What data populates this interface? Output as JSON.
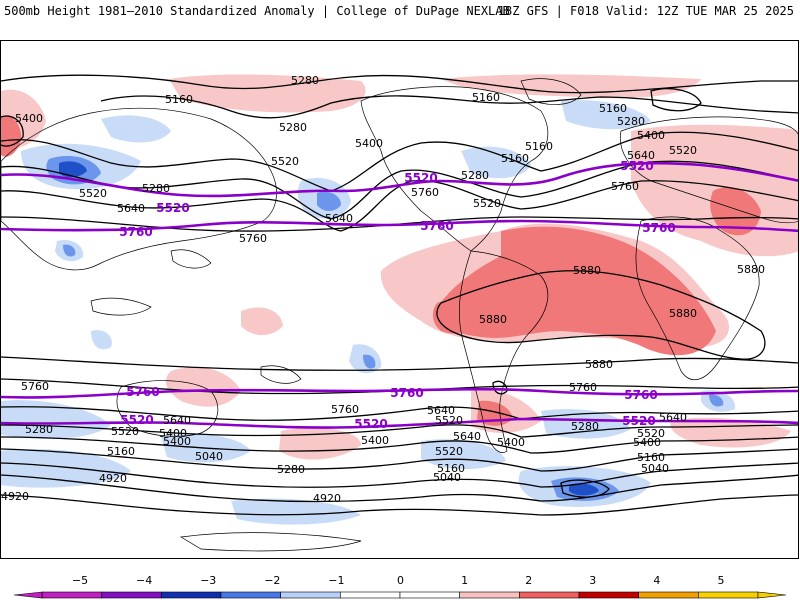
{
  "header": {
    "left": "500mb Height 1981–2010 Standardized Anomaly | College of DuPage NEXLAB",
    "right": "18Z GFS | F018 Valid: 12Z TUE MAR 25 2025"
  },
  "colors": {
    "contour": "#000000",
    "highlight_contour": "#8a00c8",
    "anomaly_pos_1": "#f8c8c8",
    "anomaly_pos_2": "#f07878",
    "anomaly_pos_3": "#c80000",
    "anomaly_neg_1": "#c8dcf8",
    "anomaly_neg_2": "#6c96ec",
    "anomaly_neg_3": "#2050c8"
  },
  "colorbar": {
    "ticks": [
      "−5",
      "−4",
      "−3",
      "−2",
      "−1",
      "0",
      "1",
      "2",
      "3",
      "4",
      "5"
    ],
    "colors": [
      "#c020c0",
      "#8010c0",
      "#1030b0",
      "#4878e8",
      "#b8d0f8",
      "#ffffff",
      "#ffffff",
      "#f8c0c0",
      "#f06060",
      "#c00000",
      "#f0a000",
      "#f8d000"
    ]
  },
  "contour_labels": [
    {
      "text": "5280"
    },
    {
      "text": "5160"
    },
    {
      "text": "5160"
    },
    {
      "text": "5160"
    },
    {
      "text": "5280"
    },
    {
      "text": "5400"
    },
    {
      "text": "5280"
    },
    {
      "text": "5400"
    },
    {
      "text": "5520"
    },
    {
      "text": "5400"
    },
    {
      "text": "5160"
    },
    {
      "text": "5520"
    },
    {
      "text": "5280"
    },
    {
      "text": "5640"
    },
    {
      "text": "5520"
    },
    {
      "text": "5640"
    },
    {
      "text": "5760"
    },
    {
      "text": "5280"
    },
    {
      "text": "5520"
    },
    {
      "text": "5760"
    },
    {
      "text": "5640"
    },
    {
      "text": "5760"
    },
    {
      "text": "5880"
    },
    {
      "text": "5880"
    },
    {
      "text": "5880"
    },
    {
      "text": "5880"
    },
    {
      "text": "5880"
    },
    {
      "text": "5760"
    },
    {
      "text": "5760"
    },
    {
      "text": "5640"
    },
    {
      "text": "5640"
    },
    {
      "text": "5520"
    },
    {
      "text": "5400"
    },
    {
      "text": "5520"
    },
    {
      "text": "5280"
    },
    {
      "text": "5400"
    },
    {
      "text": "5160"
    },
    {
      "text": "5040"
    },
    {
      "text": "5280"
    },
    {
      "text": "5160"
    },
    {
      "text": "5040"
    },
    {
      "text": "4920"
    },
    {
      "text": "4920"
    },
    {
      "text": "4920"
    },
    {
      "text": "5760"
    },
    {
      "text": "5640"
    },
    {
      "text": "5520"
    },
    {
      "text": "5400"
    },
    {
      "text": "5160"
    },
    {
      "text": "5040"
    },
    {
      "text": "5400"
    },
    {
      "text": "5280"
    },
    {
      "text": "5160"
    },
    {
      "text": "5640"
    },
    {
      "text": "5520"
    },
    {
      "text": "5400"
    }
  ],
  "highlight_labels": [
    {
      "text": "5520"
    },
    {
      "text": "5760"
    },
    {
      "text": "5520"
    },
    {
      "text": "5760"
    },
    {
      "text": "5520"
    },
    {
      "text": "5760"
    },
    {
      "text": "5760"
    },
    {
      "text": "5760"
    },
    {
      "text": "5760"
    },
    {
      "text": "5520"
    },
    {
      "text": "5520"
    },
    {
      "text": "5520"
    }
  ]
}
